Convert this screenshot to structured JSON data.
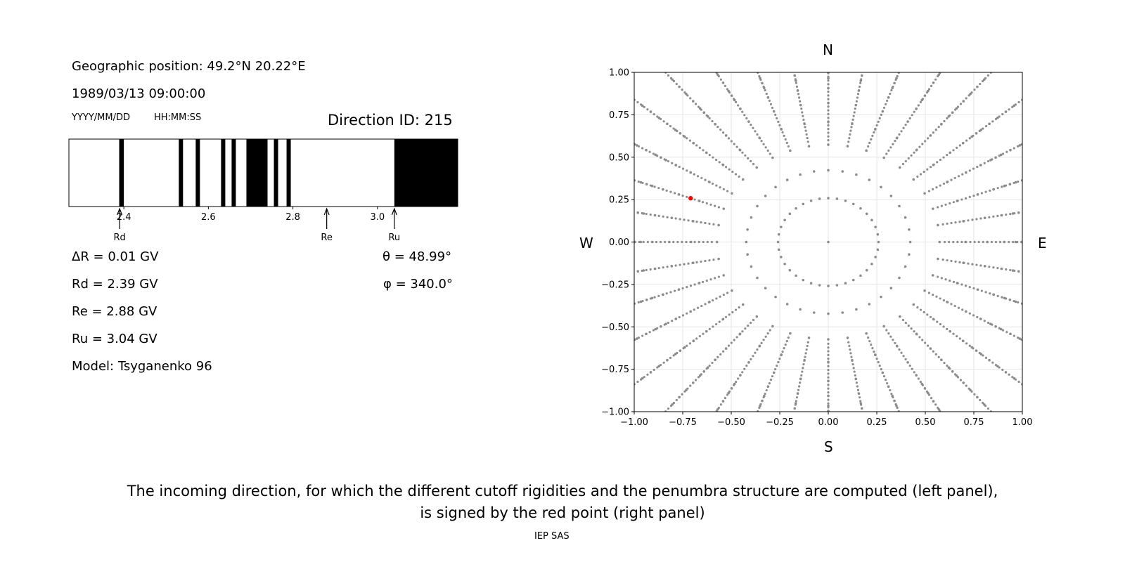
{
  "left_panel": {
    "geo_position": "Geographic position: 49.2°N 20.22°E",
    "datetime": "1989/03/13 09:00:00",
    "date_format": "YYYY/MM/DD",
    "time_format": "HH:MM:SS",
    "direction_id": "Direction ID: 215",
    "delta_r": "ΔR = 0.01 GV",
    "rd": "Rd = 2.39 GV",
    "re": "Re = 2.88 GV",
    "ru": "Ru = 3.04 GV",
    "model": "Model: Tsyganenko 96",
    "theta": "θ = 48.99°",
    "phi": "φ = 340.0°"
  },
  "compass": {
    "north": "N",
    "south": "S",
    "east": "E",
    "west": "W"
  },
  "caption": {
    "line1": "The incoming direction, for which the different cutoff rigidities and the penumbra structure are computed (left panel),",
    "line2": "is signed by the red point (right panel)"
  },
  "credit": "IEP SAS",
  "chart_data": [
    {
      "type": "bar",
      "description": "penumbra",
      "xlim": [
        2.27,
        3.19
      ],
      "xticks": [
        2.4,
        2.6,
        2.8,
        3.0
      ],
      "xtick_labels": [
        "2.4",
        "2.6",
        "2.8",
        "3.0"
      ],
      "forbidden_bands": [
        [
          2.389,
          2.4
        ],
        [
          2.53,
          2.54
        ],
        [
          2.57,
          2.58
        ],
        [
          2.63,
          2.64
        ],
        [
          2.655,
          2.665
        ],
        [
          2.69,
          2.74
        ],
        [
          2.755,
          2.765
        ],
        [
          2.785,
          2.795
        ],
        [
          3.04,
          3.19
        ]
      ],
      "markers": [
        {
          "label": "Rd",
          "value": 2.39
        },
        {
          "label": "Re",
          "value": 2.88
        },
        {
          "label": "Ru",
          "value": 3.04
        }
      ],
      "colors": {
        "forbidden": "#000000",
        "allowed": "#ffffff"
      }
    },
    {
      "type": "scatter",
      "description": "sky-map of incoming directions",
      "xlim": [
        -1.0,
        1.0
      ],
      "ylim": [
        -1.0,
        1.0
      ],
      "xticks": [
        -1.0,
        -0.75,
        -0.5,
        -0.25,
        0.0,
        0.25,
        0.5,
        0.75,
        1.0
      ],
      "yticks": [
        -1.0,
        -0.75,
        -0.5,
        -0.25,
        0.0,
        0.25,
        0.5,
        0.75,
        1.0
      ],
      "xtick_labels": [
        "−1.00",
        "−0.75",
        "−0.50",
        "−0.25",
        "0.00",
        "0.25",
        "0.50",
        "0.75",
        "1.00"
      ],
      "ytick_labels": [
        "−1.00",
        "−0.75",
        "−0.50",
        "−0.25",
        "0.00",
        "0.25",
        "0.50",
        "0.75",
        "1.00"
      ],
      "grid": true,
      "grid_points": {
        "theta_deg": [
          0,
          15,
          25,
          35,
          45,
          55,
          65,
          75,
          85,
          95,
          105,
          115,
          125,
          135,
          145,
          155,
          165,
          175,
          185,
          195,
          205,
          215,
          225,
          235,
          245,
          255,
          265,
          275
        ],
        "phi_step_deg": 10
      },
      "highlighted_point": {
        "x": -0.709,
        "y": 0.258
      },
      "colors": {
        "grid_points": "#8c8c8c",
        "highlight": "#ff0000"
      }
    }
  ]
}
